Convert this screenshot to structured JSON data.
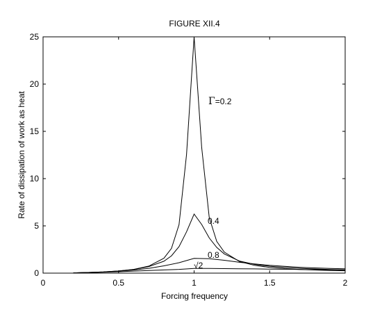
{
  "chart_data": {
    "type": "line",
    "title": "FIGURE XII.4",
    "xlabel": "Forcing frequency",
    "ylabel": "Rate of dissipation of work as heat",
    "xlim": [
      0,
      2
    ],
    "ylim": [
      0,
      25
    ],
    "x_ticks": [
      0,
      0.5,
      1,
      1.5,
      2
    ],
    "x_tick_labels": [
      "0",
      "0.5",
      "1",
      "1.5",
      "2"
    ],
    "y_ticks": [
      0,
      5,
      10,
      15,
      20,
      25
    ],
    "y_tick_labels": [
      "0",
      "5",
      "10",
      "15",
      "20",
      "25"
    ],
    "grid": false,
    "line_color": "#000000",
    "series": [
      {
        "label_parts": [
          "Γ",
          "=0.2"
        ],
        "gamma": 0.2,
        "x": [
          0.2,
          0.3,
          0.4,
          0.5,
          0.6,
          0.7,
          0.8,
          0.85,
          0.9,
          0.95,
          1.0,
          1.05,
          1.1,
          1.15,
          1.2,
          1.3,
          1.4,
          1.5,
          1.6,
          1.7,
          1.8,
          1.9,
          2.0
        ],
        "y": [
          0.03,
          0.07,
          0.13,
          0.23,
          0.4,
          0.74,
          1.57,
          2.62,
          5.13,
          12.55,
          25.0,
          13.3,
          5.87,
          3.35,
          2.22,
          1.23,
          0.82,
          0.6,
          0.48,
          0.39,
          0.33,
          0.28,
          0.25
        ]
      },
      {
        "label_parts": [
          "0.4"
        ],
        "gamma": 0.4,
        "x": [
          0.2,
          0.3,
          0.4,
          0.5,
          0.6,
          0.7,
          0.8,
          0.85,
          0.9,
          0.95,
          1.0,
          1.05,
          1.1,
          1.15,
          1.2,
          1.3,
          1.4,
          1.5,
          1.6,
          1.7,
          1.8,
          1.9,
          2.0
        ],
        "y": [
          0.03,
          0.07,
          0.13,
          0.23,
          0.38,
          0.69,
          1.26,
          1.83,
          2.81,
          4.37,
          6.25,
          5.15,
          3.72,
          2.72,
          2.03,
          1.28,
          0.93,
          0.73,
          0.6,
          0.51,
          0.44,
          0.39,
          0.35
        ]
      },
      {
        "label_parts": [
          "0.8"
        ],
        "gamma": 0.8,
        "x": [
          0.2,
          0.3,
          0.4,
          0.5,
          0.6,
          0.7,
          0.8,
          0.9,
          1.0,
          1.1,
          1.2,
          1.3,
          1.4,
          1.5,
          1.6,
          1.7,
          1.8,
          1.9,
          2.0
        ],
        "y": [
          0.03,
          0.07,
          0.12,
          0.21,
          0.33,
          0.51,
          0.77,
          1.1,
          1.56,
          1.52,
          1.36,
          1.15,
          0.97,
          0.82,
          0.71,
          0.62,
          0.55,
          0.5,
          0.46
        ]
      },
      {
        "label_parts": [
          "√2"
        ],
        "gamma": 1.414,
        "x": [
          0.2,
          0.3,
          0.4,
          0.5,
          0.6,
          0.7,
          0.8,
          0.9,
          1.0,
          1.1,
          1.2,
          1.3,
          1.4,
          1.5,
          1.6,
          1.7,
          1.8,
          1.9,
          2.0
        ],
        "y": [
          0.03,
          0.06,
          0.1,
          0.15,
          0.21,
          0.28,
          0.34,
          0.4,
          0.5,
          0.49,
          0.48,
          0.46,
          0.45,
          0.43,
          0.41,
          0.39,
          0.37,
          0.35,
          0.33
        ]
      }
    ]
  }
}
